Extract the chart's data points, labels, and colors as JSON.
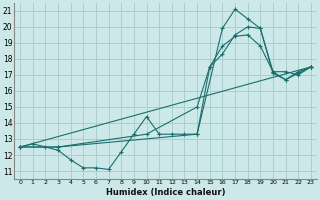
{
  "xlabel": "Humidex (Indice chaleur)",
  "ylabel": "",
  "bg_color": "#cce8e8",
  "grid_color": "#aacece",
  "line_color": "#1a6e6e",
  "xlim": [
    -0.5,
    23.5
  ],
  "ylim": [
    10.5,
    21.5
  ],
  "xticks": [
    0,
    1,
    2,
    3,
    4,
    5,
    6,
    7,
    8,
    9,
    10,
    11,
    12,
    13,
    14,
    15,
    16,
    17,
    18,
    19,
    20,
    21,
    22,
    23
  ],
  "yticks": [
    11,
    12,
    13,
    14,
    15,
    16,
    17,
    18,
    19,
    20,
    21
  ],
  "series": [
    {
      "x": [
        0,
        1,
        2,
        3,
        4,
        5,
        6,
        7,
        8,
        9,
        10,
        11,
        12,
        13,
        14,
        15,
        16,
        17,
        18,
        19,
        20,
        21,
        22,
        23
      ],
      "y": [
        12.5,
        12.7,
        12.5,
        12.3,
        11.7,
        11.2,
        11.2,
        11.1,
        12.2,
        13.3,
        14.4,
        13.3,
        13.3,
        13.3,
        13.3,
        17.5,
        18.8,
        19.4,
        19.5,
        18.8,
        17.2,
        16.7,
        17.2,
        17.5
      ]
    },
    {
      "x": [
        0,
        3,
        10,
        14,
        15,
        16,
        17,
        18,
        19,
        20,
        21,
        22,
        23
      ],
      "y": [
        12.5,
        12.5,
        13.3,
        15.0,
        17.5,
        18.3,
        19.5,
        20.0,
        19.9,
        17.2,
        17.2,
        17.0,
        17.5
      ]
    },
    {
      "x": [
        0,
        3,
        14,
        16,
        17,
        18,
        19,
        20,
        21,
        22,
        23
      ],
      "y": [
        12.5,
        12.5,
        13.3,
        19.9,
        21.1,
        20.5,
        19.9,
        17.1,
        16.7,
        17.1,
        17.5
      ]
    },
    {
      "x": [
        0,
        23
      ],
      "y": [
        12.5,
        17.5
      ]
    }
  ]
}
